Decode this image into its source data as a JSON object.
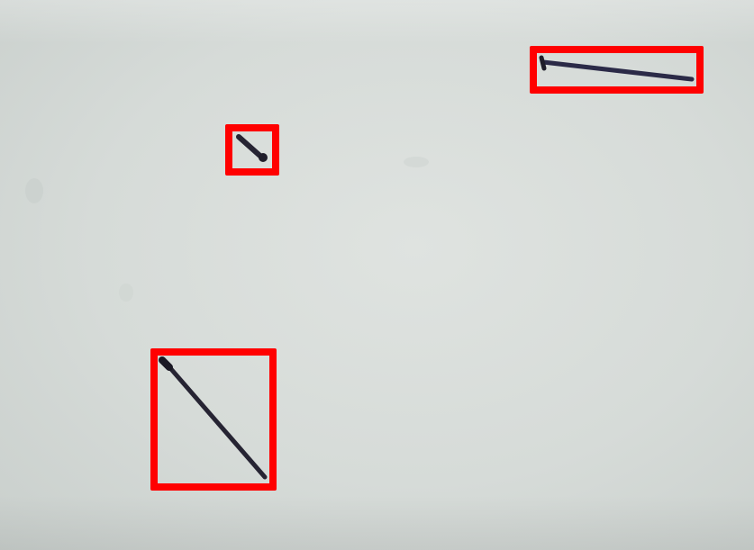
{
  "image": {
    "background_color": "#d8dcd9",
    "box_color": "#ff0000",
    "object_color": "#262433"
  },
  "detections": [
    {
      "label": "",
      "object": "nail-head-fragment"
    },
    {
      "label": "",
      "object": "nail-horizontal"
    },
    {
      "label": "",
      "object": "nail-diagonal"
    }
  ]
}
